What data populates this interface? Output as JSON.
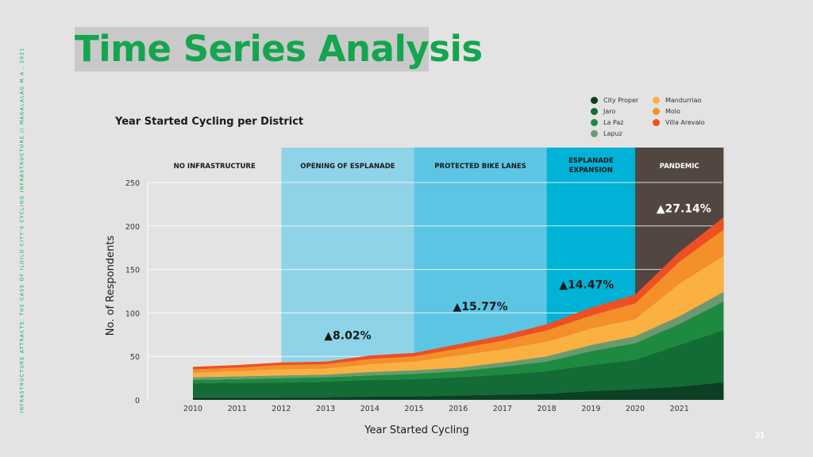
{
  "slide": {
    "title": "Time Series Analysis",
    "side_text": "INFRASTRUCTURE ATTRACTS: THE CASE OF ILOILO CITY'S CYCLING INFRASTRUCTURE // MAGALALAG M.A., 2021",
    "page_number": "31"
  },
  "chart_data": {
    "type": "area",
    "stacked": true,
    "title": "Year Started Cycling per District",
    "xlabel": "Year Started Cycling",
    "ylabel": "No. of Respondents",
    "ylim": [
      0,
      250
    ],
    "yticks": [
      0,
      50,
      100,
      150,
      200,
      250
    ],
    "x": [
      "2010",
      "2011",
      "2012",
      "2013",
      "2014",
      "2015",
      "2016",
      "2017",
      "2018",
      "2019",
      "2020",
      "2021",
      "2022"
    ],
    "xtick_labels": [
      "2010",
      "2011",
      "2012",
      "2013",
      "2014",
      "2015",
      "2016",
      "2017",
      "2018",
      "2019",
      "2020",
      "2021"
    ],
    "grid": "horizontal",
    "legend_position": "top-right",
    "series": [
      {
        "name": "City Proper",
        "color": "#0c3f24",
        "values": [
          3,
          3,
          3,
          3,
          4,
          4,
          5,
          6,
          7,
          10,
          12,
          15,
          20
        ]
      },
      {
        "name": "Jaro",
        "color": "#136b35",
        "values": [
          16,
          17,
          17,
          18,
          19,
          20,
          21,
          23,
          26,
          30,
          34,
          48,
          60
        ]
      },
      {
        "name": "La Paz",
        "color": "#1e8a3f",
        "values": [
          4,
          4,
          5,
          5,
          5,
          6,
          7,
          9,
          11,
          16,
          19,
          24,
          33
        ]
      },
      {
        "name": "Lapuz",
        "color": "#6b9a70",
        "values": [
          3,
          3,
          3,
          3,
          4,
          4,
          4,
          5,
          6,
          7,
          8,
          9,
          11
        ]
      },
      {
        "name": "Mandurriao",
        "color": "#fbb042",
        "values": [
          5,
          6,
          7,
          7,
          9,
          10,
          14,
          15,
          17,
          19,
          20,
          38,
          42
        ]
      },
      {
        "name": "Molo",
        "color": "#f58f29",
        "values": [
          4,
          4,
          5,
          5,
          6,
          6,
          8,
          10,
          13,
          15,
          18,
          25,
          30
        ]
      },
      {
        "name": "Villa Arevalo",
        "color": "#ee4f23",
        "values": [
          3,
          3,
          3,
          3,
          4,
          4,
          5,
          6,
          7,
          9,
          10,
          11,
          14
        ]
      }
    ],
    "periods": [
      {
        "label": "NO INFRASTRUCTURE",
        "start": "2010",
        "end": "2012",
        "color": "",
        "text_color": "#1a1a1a"
      },
      {
        "label": "OPENING OF ESPLANADE",
        "start": "2012",
        "end": "2015",
        "color": "#8fd3e8",
        "text_color": "#1a1a1a"
      },
      {
        "label": "PROTECTED BIKE LANES",
        "start": "2015",
        "end": "2018",
        "color": "#5cc5e3",
        "text_color": "#1a1a1a"
      },
      {
        "label": "ESPLANADE EXPANSION",
        "start": "2018",
        "end": "2020",
        "color": "#00b2d6",
        "text_color": "#1a1a1a"
      },
      {
        "label": "PANDEMIC",
        "start": "2020",
        "end": "2022",
        "color": "#524640",
        "text_color": "#ffffff"
      }
    ],
    "annotations": [
      {
        "text": "▲8.02%",
        "x": "2013.5",
        "y": 70,
        "color": "#1a1a1a"
      },
      {
        "text": "▲15.77%",
        "x": "2016.5",
        "y": 103,
        "color": "#1a1a1a"
      },
      {
        "text": "▲14.47%",
        "x": "2018.9",
        "y": 128,
        "color": "#1a1a1a"
      },
      {
        "text": "▲27.14%",
        "x": "2021.1",
        "y": 216,
        "color": "#ffffff"
      }
    ]
  }
}
